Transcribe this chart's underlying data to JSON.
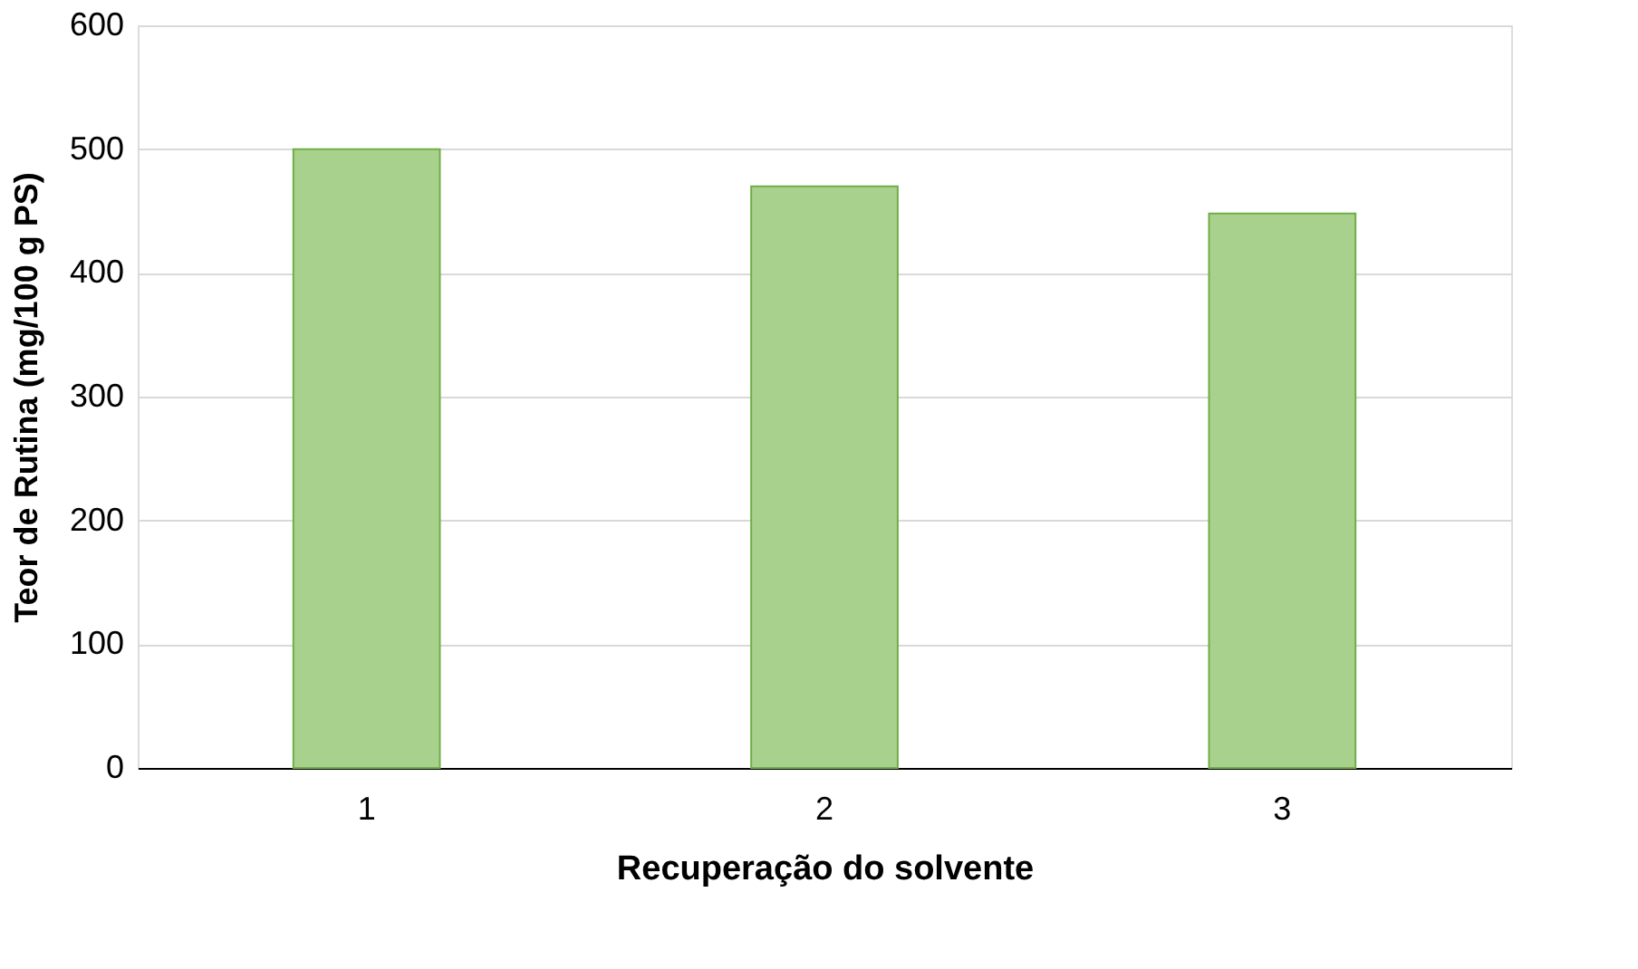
{
  "chart_data": {
    "type": "bar",
    "xlabel": "Recuperação do solvente",
    "ylabel": "Teor de Rutina  (mg/100 g PS)",
    "categories": [
      "1",
      "2",
      "3"
    ],
    "values": [
      500,
      470,
      448
    ],
    "color": "#a9d18e",
    "ylim": [
      0,
      600
    ],
    "yticks": [
      0,
      100,
      200,
      300,
      400,
      500,
      600
    ],
    "grid": "y"
  }
}
